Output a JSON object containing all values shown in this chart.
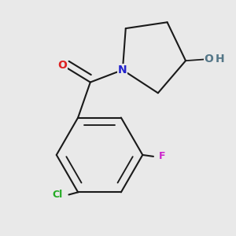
{
  "background_color": "#e9e9e9",
  "bond_color": "#1a1a1a",
  "bond_width": 1.5,
  "atoms": {
    "N": {
      "color": "#2222cc",
      "fontsize": 10
    },
    "O_carbonyl": {
      "color": "#dd2222",
      "fontsize": 10
    },
    "O_hydroxyl": {
      "color": "#557788",
      "fontsize": 10
    },
    "H": {
      "color": "#557788",
      "fontsize": 10
    },
    "Cl": {
      "color": "#22aa22",
      "fontsize": 9
    },
    "F": {
      "color": "#cc22cc",
      "fontsize": 9
    }
  },
  "figsize": [
    3.0,
    3.0
  ],
  "dpi": 100
}
